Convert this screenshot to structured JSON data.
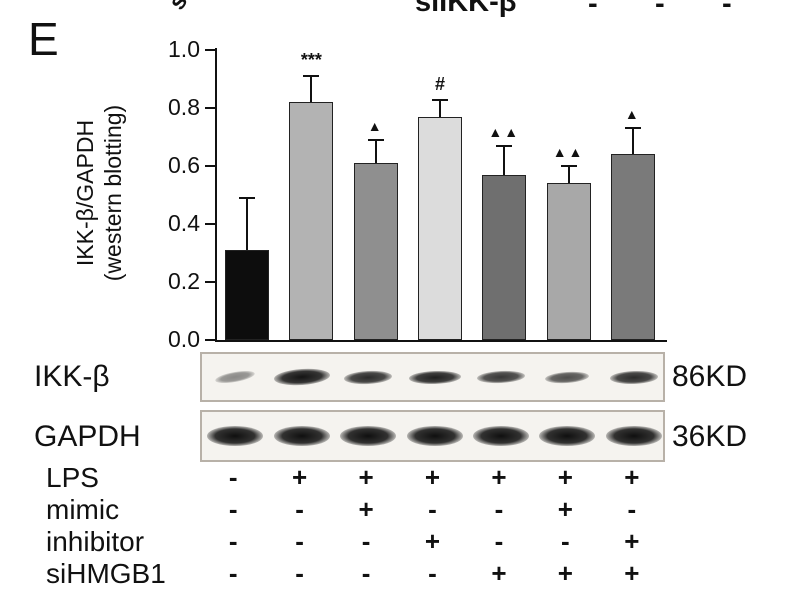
{
  "panel": {
    "label": "E"
  },
  "top_cut": {
    "left_fragment": "s",
    "label": "siIKK-β",
    "dashes": [
      "-",
      "-",
      "-"
    ]
  },
  "chart_data": {
    "type": "bar",
    "title": "",
    "ylabel_line1": "IKK-β/GAPDH",
    "ylabel_line2": "(western blotting)",
    "xlabel": "",
    "ylim": [
      0,
      1.0
    ],
    "yticks": [
      "0.0",
      "0.2",
      "0.4",
      "0.6",
      "0.8",
      "1.0"
    ],
    "categories": [
      "lane1",
      "lane2",
      "lane3",
      "lane4",
      "lane5",
      "lane6",
      "lane7"
    ],
    "values": [
      0.31,
      0.82,
      0.61,
      0.77,
      0.57,
      0.54,
      0.64
    ],
    "errors": [
      0.18,
      0.09,
      0.08,
      0.06,
      0.1,
      0.06,
      0.09
    ],
    "annotations": [
      "",
      "***",
      "▲",
      "#",
      "▲▲",
      "▲▲",
      "▲"
    ],
    "bar_colors": [
      "#0d0d0d",
      "#b3b3b3",
      "#8f8f8f",
      "#dcdcdc",
      "#6f6f6f",
      "#a8a8a8",
      "#7a7a7a"
    ],
    "grid": false,
    "legend": false
  },
  "blots": [
    {
      "label": "IKK-β",
      "size": "86KD",
      "bands": [
        [
          40,
          10,
          0.45,
          -10
        ],
        [
          56,
          16,
          0.95,
          -4
        ],
        [
          48,
          13,
          0.85,
          -3
        ],
        [
          52,
          13,
          0.9,
          -2
        ],
        [
          48,
          12,
          0.8,
          -3
        ],
        [
          44,
          11,
          0.7,
          -4
        ],
        [
          48,
          13,
          0.85,
          -2
        ]
      ]
    },
    {
      "label": "GAPDH",
      "size": "36KD",
      "bands": [
        [
          56,
          20,
          0.97,
          0
        ],
        [
          56,
          20,
          0.97,
          0
        ],
        [
          56,
          20,
          0.97,
          0
        ],
        [
          56,
          20,
          0.97,
          0
        ],
        [
          56,
          20,
          0.97,
          0
        ],
        [
          56,
          20,
          0.97,
          0
        ],
        [
          56,
          20,
          0.97,
          0
        ]
      ]
    }
  ],
  "treatments": [
    {
      "label": "LPS",
      "values": [
        "-",
        "+",
        "+",
        "+",
        "+",
        "+",
        "+"
      ]
    },
    {
      "label": "mimic",
      "values": [
        "-",
        "-",
        "+",
        "-",
        "-",
        "+",
        "-"
      ]
    },
    {
      "label": "inhibitor",
      "values": [
        "-",
        "-",
        "-",
        "+",
        "-",
        "-",
        "+"
      ]
    },
    {
      "label": "siHMGB1",
      "values": [
        "-",
        "-",
        "-",
        "-",
        "+",
        "+",
        "+"
      ]
    }
  ]
}
